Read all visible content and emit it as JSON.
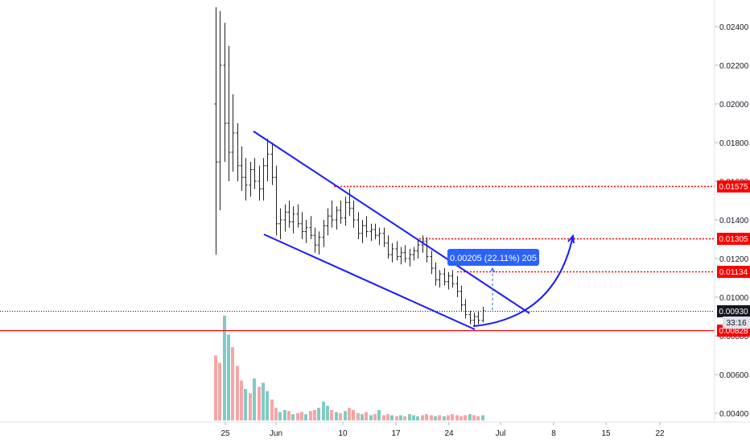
{
  "chart_data": {
    "type": "candlestick",
    "price_axis": {
      "ticks": [
        "0.02400",
        "0.02200",
        "0.02000",
        "0.01800",
        "0.01600",
        "0.01400",
        "0.01200",
        "0.01000",
        "0.00800",
        "0.00600",
        "0.00400"
      ],
      "range": [
        0.0033,
        0.0252
      ]
    },
    "time_axis": {
      "ticks": [
        "25",
        "Jun",
        "10",
        "17",
        "24",
        "Jul",
        "8",
        "15",
        "22"
      ]
    },
    "price_labels": [
      {
        "text": "0.01575",
        "value": 0.01575,
        "color": "#ff0000",
        "line": "dotted"
      },
      {
        "text": "0.01305",
        "value": 0.01305,
        "color": "#ff0000",
        "line": "dotted"
      },
      {
        "text": "0.01134",
        "value": 0.01134,
        "color": "#ff0000",
        "line": "dotted"
      },
      {
        "text": "0.00930",
        "value": 0.0093,
        "color": "#131722",
        "line": "dotted-dark"
      },
      {
        "text": "0.00828",
        "value": 0.00828,
        "color": "#ff0000",
        "line": "solid"
      }
    ],
    "countdown": "33:16",
    "measure_label": "0.00205 (22.11%) 205",
    "colors": {
      "channel": "#1a1aff",
      "level": "#ff0000",
      "measure_bg": "#2962ff",
      "volume_up": "#80cbc4",
      "volume_down": "#f7a5a5",
      "candles": "#222222",
      "axis_text": "#131722"
    },
    "channel": {
      "upper": [
        [
          0.02,
          0.0185
        ],
        [
          0.76,
          0.00945
        ]
      ],
      "lower": [
        [
          0.02,
          0.0131
        ],
        [
          0.62,
          0.00835
        ]
      ]
    },
    "forecast_arc": "from channel bottom up to 0.01305 level",
    "series": [
      {
        "o": 0.02,
        "h": 0.025,
        "l": 0.0122,
        "c": 0.017
      },
      {
        "o": 0.017,
        "h": 0.0248,
        "l": 0.0145,
        "c": 0.022
      },
      {
        "o": 0.022,
        "h": 0.0242,
        "l": 0.017,
        "c": 0.019
      },
      {
        "o": 0.019,
        "h": 0.023,
        "l": 0.016,
        "c": 0.0175
      },
      {
        "o": 0.0175,
        "h": 0.0205,
        "l": 0.0165,
        "c": 0.0185
      },
      {
        "o": 0.0185,
        "h": 0.019,
        "l": 0.016,
        "c": 0.0168
      },
      {
        "o": 0.0168,
        "h": 0.0178,
        "l": 0.0155,
        "c": 0.0162
      },
      {
        "o": 0.0162,
        "h": 0.0172,
        "l": 0.015,
        "c": 0.0158
      },
      {
        "o": 0.0158,
        "h": 0.017,
        "l": 0.0152,
        "c": 0.0166
      },
      {
        "o": 0.0166,
        "h": 0.0172,
        "l": 0.0156,
        "c": 0.016
      },
      {
        "o": 0.016,
        "h": 0.0168,
        "l": 0.015,
        "c": 0.0156
      },
      {
        "o": 0.0156,
        "h": 0.0172,
        "l": 0.015,
        "c": 0.0168
      },
      {
        "o": 0.0168,
        "h": 0.0182,
        "l": 0.016,
        "c": 0.0174
      },
      {
        "o": 0.0174,
        "h": 0.018,
        "l": 0.0158,
        "c": 0.0162
      },
      {
        "o": 0.0162,
        "h": 0.0168,
        "l": 0.0132,
        "c": 0.0138
      },
      {
        "o": 0.0138,
        "h": 0.0146,
        "l": 0.013,
        "c": 0.014
      },
      {
        "o": 0.014,
        "h": 0.0148,
        "l": 0.0134,
        "c": 0.0144
      },
      {
        "o": 0.0144,
        "h": 0.015,
        "l": 0.0136,
        "c": 0.0139
      },
      {
        "o": 0.0139,
        "h": 0.0147,
        "l": 0.0133,
        "c": 0.0143
      },
      {
        "o": 0.0143,
        "h": 0.0148,
        "l": 0.0136,
        "c": 0.0138
      },
      {
        "o": 0.0138,
        "h": 0.0144,
        "l": 0.013,
        "c": 0.0134
      },
      {
        "o": 0.0134,
        "h": 0.014,
        "l": 0.0128,
        "c": 0.0136
      },
      {
        "o": 0.0136,
        "h": 0.0142,
        "l": 0.013,
        "c": 0.0132
      },
      {
        "o": 0.0132,
        "h": 0.0136,
        "l": 0.0123,
        "c": 0.0127
      },
      {
        "o": 0.0127,
        "h": 0.0134,
        "l": 0.0122,
        "c": 0.0131
      },
      {
        "o": 0.0131,
        "h": 0.014,
        "l": 0.0126,
        "c": 0.0137
      },
      {
        "o": 0.0137,
        "h": 0.0146,
        "l": 0.0132,
        "c": 0.0142
      },
      {
        "o": 0.0142,
        "h": 0.015,
        "l": 0.0136,
        "c": 0.014
      },
      {
        "o": 0.014,
        "h": 0.0147,
        "l": 0.0135,
        "c": 0.0145
      },
      {
        "o": 0.0145,
        "h": 0.015,
        "l": 0.0138,
        "c": 0.0141
      },
      {
        "o": 0.0141,
        "h": 0.0152,
        "l": 0.0137,
        "c": 0.0149
      },
      {
        "o": 0.0149,
        "h": 0.0156,
        "l": 0.0142,
        "c": 0.0146
      },
      {
        "o": 0.0146,
        "h": 0.015,
        "l": 0.0136,
        "c": 0.014
      },
      {
        "o": 0.014,
        "h": 0.0144,
        "l": 0.013,
        "c": 0.0133
      },
      {
        "o": 0.0133,
        "h": 0.014,
        "l": 0.0128,
        "c": 0.0137
      },
      {
        "o": 0.0137,
        "h": 0.0142,
        "l": 0.0131,
        "c": 0.0134
      },
      {
        "o": 0.0134,
        "h": 0.0138,
        "l": 0.0129,
        "c": 0.0135
      },
      {
        "o": 0.0135,
        "h": 0.0138,
        "l": 0.013,
        "c": 0.0132
      },
      {
        "o": 0.0132,
        "h": 0.0136,
        "l": 0.0127,
        "c": 0.0133
      },
      {
        "o": 0.0133,
        "h": 0.0136,
        "l": 0.0126,
        "c": 0.0128
      },
      {
        "o": 0.0128,
        "h": 0.0132,
        "l": 0.012,
        "c": 0.0122
      },
      {
        "o": 0.0122,
        "h": 0.0128,
        "l": 0.0118,
        "c": 0.0125
      },
      {
        "o": 0.0125,
        "h": 0.0129,
        "l": 0.0119,
        "c": 0.0121
      },
      {
        "o": 0.0121,
        "h": 0.0126,
        "l": 0.0117,
        "c": 0.0123
      },
      {
        "o": 0.0123,
        "h": 0.0127,
        "l": 0.0118,
        "c": 0.012
      },
      {
        "o": 0.012,
        "h": 0.0125,
        "l": 0.0116,
        "c": 0.0122
      },
      {
        "o": 0.0122,
        "h": 0.0126,
        "l": 0.0119,
        "c": 0.0124
      },
      {
        "o": 0.0124,
        "h": 0.013,
        "l": 0.012,
        "c": 0.0127
      },
      {
        "o": 0.0127,
        "h": 0.0132,
        "l": 0.0123,
        "c": 0.0129
      },
      {
        "o": 0.0129,
        "h": 0.0131,
        "l": 0.0118,
        "c": 0.0121
      },
      {
        "o": 0.0121,
        "h": 0.0124,
        "l": 0.0112,
        "c": 0.0115
      },
      {
        "o": 0.0115,
        "h": 0.0118,
        "l": 0.0106,
        "c": 0.0109
      },
      {
        "o": 0.0109,
        "h": 0.0114,
        "l": 0.0105,
        "c": 0.0112
      },
      {
        "o": 0.0112,
        "h": 0.0115,
        "l": 0.0106,
        "c": 0.0108
      },
      {
        "o": 0.0108,
        "h": 0.0113,
        "l": 0.0104,
        "c": 0.0111
      },
      {
        "o": 0.0111,
        "h": 0.0114,
        "l": 0.0105,
        "c": 0.0107
      },
      {
        "o": 0.0107,
        "h": 0.0111,
        "l": 0.01,
        "c": 0.0103
      },
      {
        "o": 0.0103,
        "h": 0.0106,
        "l": 0.0093,
        "c": 0.0096
      },
      {
        "o": 0.0096,
        "h": 0.0099,
        "l": 0.0089,
        "c": 0.0091
      },
      {
        "o": 0.0091,
        "h": 0.0093,
        "l": 0.0086,
        "c": 0.0088
      },
      {
        "o": 0.0088,
        "h": 0.0092,
        "l": 0.0085,
        "c": 0.009
      },
      {
        "o": 0.009,
        "h": 0.0093,
        "l": 0.0086,
        "c": 0.0088
      },
      {
        "o": 0.0088,
        "h": 0.0095,
        "l": 0.0087,
        "c": 0.0093
      }
    ],
    "volume": {
      "range": [
        0,
        1
      ],
      "values": [
        0.62,
        0.55,
        1.0,
        0.82,
        0.7,
        0.52,
        0.38,
        0.3,
        0.26,
        0.4,
        0.32,
        0.36,
        0.28,
        0.2,
        0.12,
        0.08,
        0.1,
        0.09,
        0.06,
        0.07,
        0.08,
        0.06,
        0.09,
        0.1,
        0.12,
        0.18,
        0.14,
        0.1,
        0.08,
        0.07,
        0.09,
        0.12,
        0.1,
        0.07,
        0.06,
        0.08,
        0.05,
        0.06,
        0.1,
        0.05,
        0.06,
        0.05,
        0.04,
        0.05,
        0.04,
        0.06,
        0.05,
        0.04,
        0.05,
        0.06,
        0.05,
        0.04,
        0.05,
        0.04,
        0.05,
        0.06,
        0.05,
        0.04,
        0.05,
        0.06,
        0.05,
        0.04,
        0.05
      ],
      "up": [
        false,
        false,
        true,
        true,
        false,
        false,
        false,
        true,
        false,
        true,
        false,
        true,
        true,
        false,
        false,
        true,
        true,
        false,
        true,
        false,
        false,
        true,
        false,
        false,
        true,
        true,
        true,
        false,
        true,
        false,
        true,
        false,
        false,
        false,
        true,
        false,
        true,
        false,
        true,
        false,
        false,
        true,
        false,
        true,
        false,
        true,
        true,
        true,
        false,
        false,
        false,
        true,
        false,
        true,
        false,
        false,
        false,
        false,
        false,
        true,
        false,
        false,
        true
      ]
    }
  }
}
